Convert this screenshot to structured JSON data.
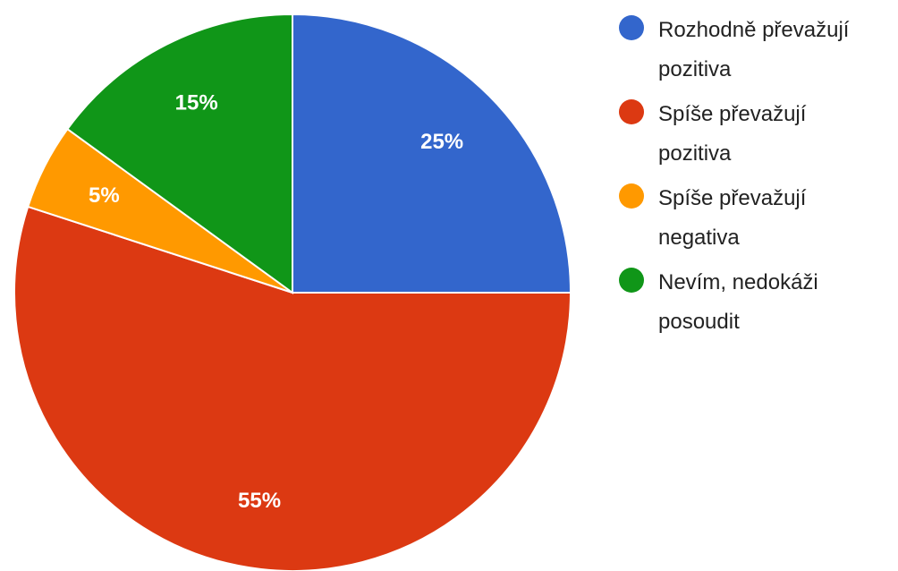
{
  "chart_data": {
    "type": "pie",
    "categories": [
      "Rozhodně převažují pozitiva",
      "Spíše převažují pozitiva",
      "Spíše převažují negativa",
      "Nevím, nedokáži posoudit"
    ],
    "values": [
      25,
      55,
      5,
      15
    ],
    "value_labels": [
      "25%",
      "55%",
      "5%",
      "15%"
    ],
    "colors": [
      "#3366cc",
      "#dc3912",
      "#ff9900",
      "#109618"
    ],
    "legend": "right"
  }
}
